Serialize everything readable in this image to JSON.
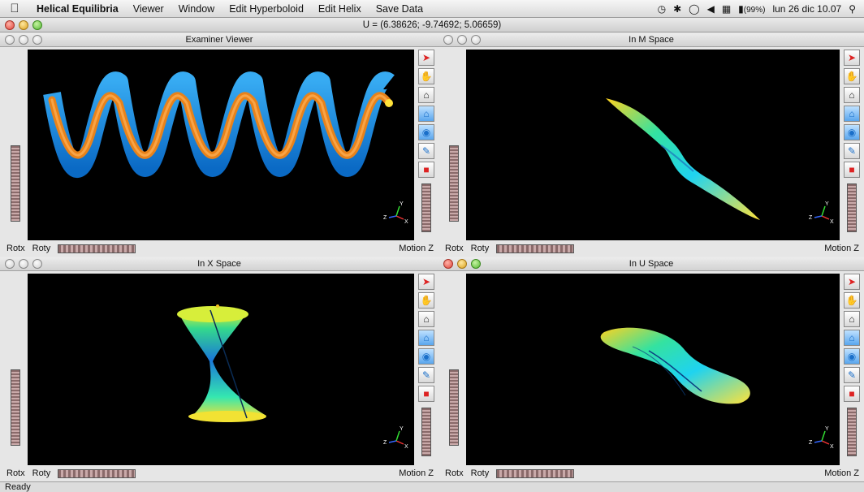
{
  "menubar": {
    "apple_icon": "apple-logo",
    "items": [
      "Helical Equilibria",
      "Viewer",
      "Window",
      "Edit Hyperboloid",
      "Edit Helix",
      "Save Data"
    ],
    "status_icons": [
      "time-machine-icon",
      "bluetooth-icon",
      "wifi-icon",
      "volume-icon",
      "keyboard-icon",
      "battery-icon"
    ],
    "battery": "(99%)",
    "clock": "lun 26 dic  10.07",
    "search_icon": "magnifier-icon"
  },
  "window": {
    "title": "U = (6.38626; -9.74692; 5.06659)"
  },
  "panels": [
    {
      "title": "Examiner Viewer",
      "rotx": "Rotx",
      "roty": "Roty",
      "motion": "Motion Z",
      "active": false
    },
    {
      "title": "In M Space",
      "rotx": "Rotx",
      "roty": "Roty",
      "motion": "Motion Z",
      "active": false
    },
    {
      "title": "In X Space",
      "rotx": "Rotx",
      "roty": "Roty",
      "motion": "Motion Z",
      "active": false
    },
    {
      "title": "In U Space",
      "rotx": "Rotx",
      "roty": "Roty",
      "motion": "Motion Z",
      "active": true
    }
  ],
  "toolbar_icons": [
    "select-arrow-icon",
    "pan-hand-icon",
    "home-icon",
    "set-home-icon",
    "view-all-icon",
    "seek-icon",
    "projection-icon"
  ],
  "axis_labels": {
    "x": "X",
    "y": "Y",
    "z": "Z"
  },
  "status": "Ready"
}
